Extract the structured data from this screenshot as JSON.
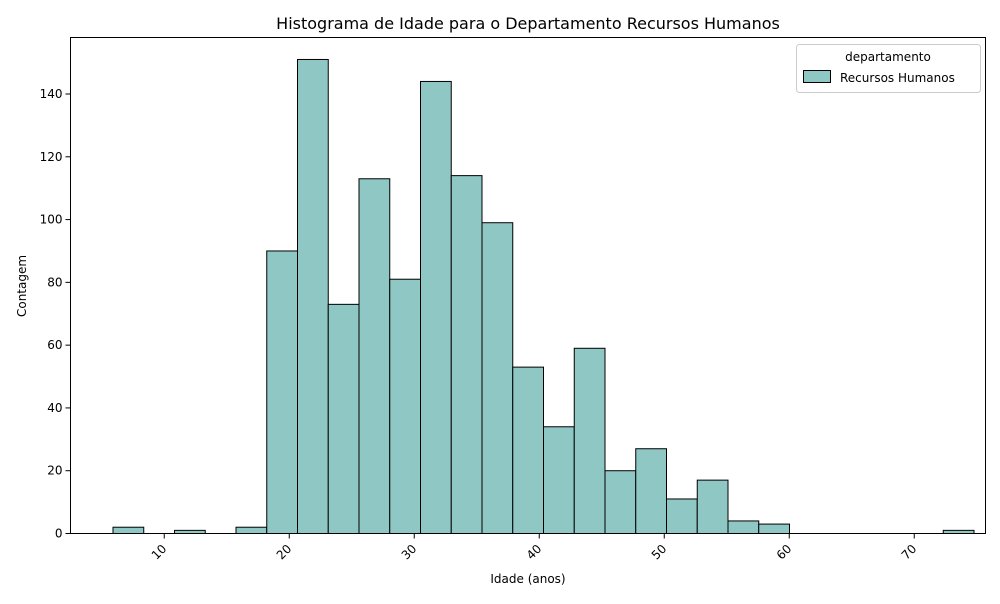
{
  "chart_data": {
    "type": "bar",
    "title": "Histograma de Idade para o Departamento Recursos Humanos",
    "xlabel": "Idade (anos)",
    "ylabel": "Contagem",
    "xlim": [
      2.5,
      75.7
    ],
    "ylim": [
      0,
      158
    ],
    "x_ticks": [
      10,
      20,
      30,
      40,
      50,
      60,
      70
    ],
    "y_ticks": [
      0,
      20,
      40,
      60,
      80,
      100,
      120,
      140
    ],
    "grid": false,
    "legend": {
      "title": "departamento",
      "placement": "top-right"
    },
    "bar_color": "#8fc7c4",
    "edge_color": "#000000",
    "series": [
      {
        "name": "Recursos Humanos",
        "bins": [
          {
            "x0": 5.9,
            "x1": 8.36,
            "value": 2
          },
          {
            "x0": 8.36,
            "x1": 10.82,
            "value": 0
          },
          {
            "x0": 10.82,
            "x1": 13.28,
            "value": 1
          },
          {
            "x0": 13.28,
            "x1": 15.74,
            "value": 0
          },
          {
            "x0": 15.74,
            "x1": 18.2,
            "value": 2
          },
          {
            "x0": 18.2,
            "x1": 20.66,
            "value": 90
          },
          {
            "x0": 20.66,
            "x1": 23.12,
            "value": 151
          },
          {
            "x0": 23.12,
            "x1": 25.58,
            "value": 73
          },
          {
            "x0": 25.58,
            "x1": 28.04,
            "value": 113
          },
          {
            "x0": 28.04,
            "x1": 30.5,
            "value": 81
          },
          {
            "x0": 30.5,
            "x1": 32.96,
            "value": 144
          },
          {
            "x0": 32.96,
            "x1": 35.42,
            "value": 114
          },
          {
            "x0": 35.42,
            "x1": 37.88,
            "value": 99
          },
          {
            "x0": 37.88,
            "x1": 40.34,
            "value": 53
          },
          {
            "x0": 40.34,
            "x1": 42.8,
            "value": 34
          },
          {
            "x0": 42.8,
            "x1": 45.26,
            "value": 59
          },
          {
            "x0": 45.26,
            "x1": 47.72,
            "value": 20
          },
          {
            "x0": 47.72,
            "x1": 50.18,
            "value": 27
          },
          {
            "x0": 50.18,
            "x1": 52.64,
            "value": 11
          },
          {
            "x0": 52.64,
            "x1": 55.1,
            "value": 17
          },
          {
            "x0": 55.1,
            "x1": 57.56,
            "value": 4
          },
          {
            "x0": 57.56,
            "x1": 60.02,
            "value": 3
          },
          {
            "x0": 60.02,
            "x1": 62.48,
            "value": 0
          },
          {
            "x0": 62.48,
            "x1": 64.94,
            "value": 0
          },
          {
            "x0": 64.94,
            "x1": 67.4,
            "value": 0
          },
          {
            "x0": 67.4,
            "x1": 69.86,
            "value": 0
          },
          {
            "x0": 69.86,
            "x1": 72.32,
            "value": 0
          },
          {
            "x0": 72.32,
            "x1": 74.78,
            "value": 1
          }
        ]
      }
    ]
  }
}
